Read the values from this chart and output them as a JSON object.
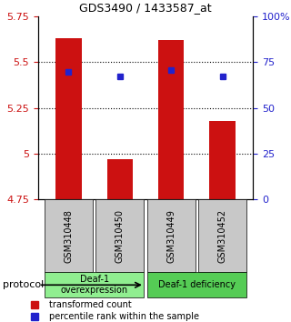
{
  "title": "GDS3490 / 1433587_at",
  "samples": [
    "GSM310448",
    "GSM310450",
    "GSM310449",
    "GSM310452"
  ],
  "red_values": [
    5.63,
    4.97,
    5.62,
    5.18
  ],
  "blue_values": [
    5.445,
    5.42,
    5.455,
    5.42
  ],
  "ylim": [
    4.75,
    5.75
  ],
  "yticks": [
    4.75,
    5.0,
    5.25,
    5.5,
    5.75
  ],
  "ytick_labels": [
    "4.75",
    "5",
    "5.25",
    "5.5",
    "5.75"
  ],
  "right_yticks": [
    0,
    25,
    50,
    75,
    100
  ],
  "right_ytick_labels": [
    "0",
    "25",
    "50",
    "75",
    "100%"
  ],
  "bar_color": "#cc1111",
  "dot_color": "#2222cc",
  "bar_width": 0.5,
  "base_value": 4.75,
  "groups": [
    {
      "label": "Deaf-1\noverexpression",
      "samples": [
        0,
        1
      ],
      "color": "#90EE90"
    },
    {
      "label": "Deaf-1 deficiency",
      "samples": [
        2,
        3
      ],
      "color": "#55cc55"
    }
  ],
  "protocol_label": "protocol",
  "legend_red": "transformed count",
  "legend_blue": "percentile rank within the sample",
  "sample_box_color": "#c8c8c8",
  "grid_dotted_at": [
    5.0,
    5.25,
    5.5
  ]
}
